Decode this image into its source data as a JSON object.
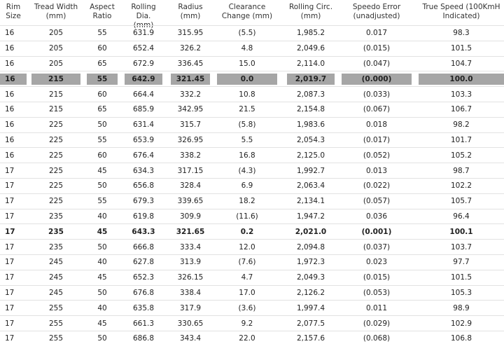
{
  "table": {
    "header": [
      "Rim\nSize",
      "Tread Width\n(mm)",
      "Aspect\nRatio",
      "Rolling Dia.\n(mm)",
      "Radius\n(mm)",
      "Clearance\nChange (mm)",
      "Rolling Circ.\n(mm)",
      "Speedo Error\n(unadjusted)",
      "True Speed (100KmH\nIndicated)"
    ],
    "rows": [
      [
        "16",
        "205",
        "55",
        "631.9",
        "315.95",
        "(5.5)",
        "1,985.2",
        "0.017",
        "98.3"
      ],
      [
        "16",
        "205",
        "60",
        "652.4",
        "326.2",
        "4.8",
        "2,049.6",
        "(0.015)",
        "101.5"
      ],
      [
        "16",
        "205",
        "65",
        "672.9",
        "336.45",
        "15.0",
        "2,114.0",
        "(0.047)",
        "104.7"
      ],
      [
        "16",
        "215",
        "55",
        "642.9",
        "321.45",
        "0.0",
        "2,019.7",
        "(0.000)",
        "100.0"
      ],
      [
        "16",
        "215",
        "60",
        "664.4",
        "332.2",
        "10.8",
        "2,087.3",
        "(0.033)",
        "103.3"
      ],
      [
        "16",
        "215",
        "65",
        "685.9",
        "342.95",
        "21.5",
        "2,154.8",
        "(0.067)",
        "106.7"
      ],
      [
        "16",
        "225",
        "50",
        "631.4",
        "315.7",
        "(5.8)",
        "1,983.6",
        "0.018",
        "98.2"
      ],
      [
        "16",
        "225",
        "55",
        "653.9",
        "326.95",
        "5.5",
        "2,054.3",
        "(0.017)",
        "101.7"
      ],
      [
        "16",
        "225",
        "60",
        "676.4",
        "338.2",
        "16.8",
        "2,125.0",
        "(0.052)",
        "105.2"
      ],
      [
        "17",
        "225",
        "45",
        "634.3",
        "317.15",
        "(4.3)",
        "1,992.7",
        "0.013",
        "98.7"
      ],
      [
        "17",
        "225",
        "50",
        "656.8",
        "328.4",
        "6.9",
        "2,063.4",
        "(0.022)",
        "102.2"
      ],
      [
        "17",
        "225",
        "55",
        "679.3",
        "339.65",
        "18.2",
        "2,134.1",
        "(0.057)",
        "105.7"
      ],
      [
        "17",
        "235",
        "40",
        "619.8",
        "309.9",
        "(11.6)",
        "1,947.2",
        "0.036",
        "96.4"
      ],
      [
        "17",
        "235",
        "45",
        "643.3",
        "321.65",
        "0.2",
        "2,021.0",
        "(0.001)",
        "100.1"
      ],
      [
        "17",
        "235",
        "50",
        "666.8",
        "333.4",
        "12.0",
        "2,094.8",
        "(0.037)",
        "103.7"
      ],
      [
        "17",
        "245",
        "40",
        "627.8",
        "313.9",
        "(7.6)",
        "1,972.3",
        "0.023",
        "97.7"
      ],
      [
        "17",
        "245",
        "45",
        "652.3",
        "326.15",
        "4.7",
        "2,049.3",
        "(0.015)",
        "101.5"
      ],
      [
        "17",
        "245",
        "50",
        "676.8",
        "338.4",
        "17.0",
        "2,126.2",
        "(0.053)",
        "105.3"
      ],
      [
        "17",
        "255",
        "40",
        "635.8",
        "317.9",
        "(3.6)",
        "1,997.4",
        "0.011",
        "98.9"
      ],
      [
        "17",
        "255",
        "45",
        "661.3",
        "330.65",
        "9.2",
        "2,077.5",
        "(0.029)",
        "102.9"
      ],
      [
        "17",
        "255",
        "50",
        "686.8",
        "343.4",
        "22.0",
        "2,157.6",
        "(0.068)",
        "106.8"
      ]
    ]
  }
}
